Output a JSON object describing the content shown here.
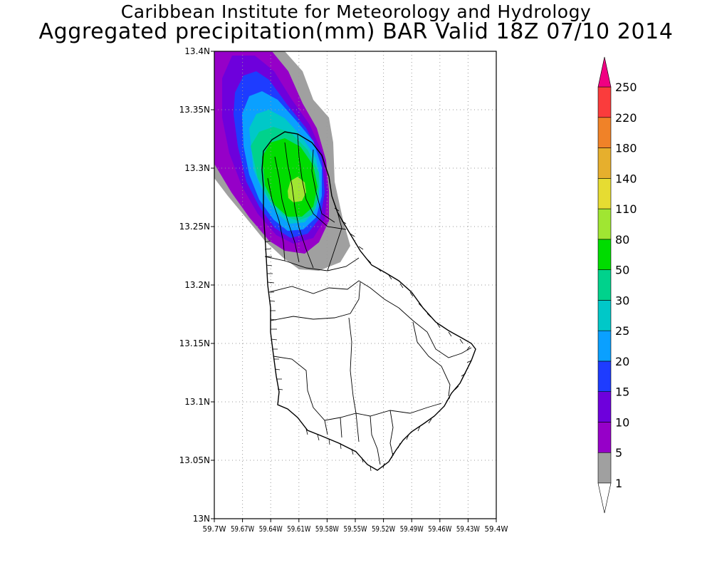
{
  "titles": {
    "line1": "Caribbean Institute for Meteorology and Hydrology",
    "line2": "Aggregated precipitation(mm) BAR Valid 18Z 07/10 2014"
  },
  "map": {
    "lat_range": [
      13.0,
      13.4
    ],
    "lon_range": [
      "59.7W",
      "59.4W"
    ],
    "grid": "dotted",
    "lat_ticks": [
      "13.4N",
      "13.35N",
      "13.3N",
      "13.25N",
      "13.2N",
      "13.15N",
      "13.1N",
      "13.05N",
      "13N"
    ],
    "lon_ticks": [
      "59.7W",
      "59.67W",
      "59.64W",
      "59.61W",
      "59.58W",
      "59.55W",
      "59.52W",
      "59.49W",
      "59.46W",
      "59.43W",
      "59.4W"
    ],
    "rain_max_mm": "80-110",
    "rain_center": "13.28N 59.61W"
  },
  "colorbar": {
    "labels": [
      "1",
      "5",
      "10",
      "15",
      "20",
      "25",
      "30",
      "50",
      "80",
      "110",
      "140",
      "180",
      "220",
      "250"
    ],
    "colors": {
      "c_1_5": "#a0a0a0",
      "c_5_10": "#9600c8",
      "c_10_15": "#6e00dc",
      "c_15_20": "#1e3cff",
      "c_20_25": "#0aa0ff",
      "c_25_30": "#00c8c8",
      "c_30_50": "#00d28c",
      "c_50_80": "#00dc00",
      "c_80_110": "#a0e632",
      "c_110_140": "#e6dc32",
      "c_140_180": "#e6af2d",
      "c_180_220": "#f08228",
      "c_220_250": "#fa3c3c",
      "c_250_plus": "#f00082"
    }
  }
}
